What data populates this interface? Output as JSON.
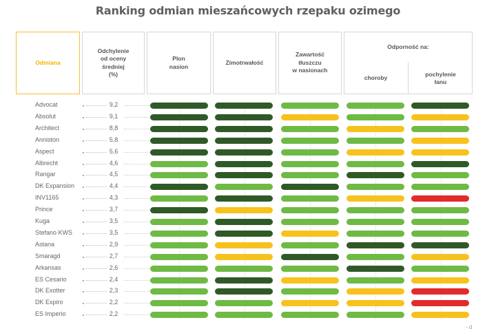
{
  "title": "Ranking odmian mieszańcowych rzepaku ozimego",
  "headers": {
    "variety": "Odmiana",
    "deviation": "Odchylenie\nod oceny\nśredniej\n(%)",
    "yield": "Plon\nnasion",
    "winter": "Zimotrwałość",
    "fat": "Zawartość\ntłuszczu\nw nasionach",
    "resistance": "Odporność na:",
    "disease": "choroby",
    "lodging": "pochylenie\nłanu"
  },
  "colors": {
    "D": "#2f5a27",
    "G": "#6fba45",
    "Y": "#f7c21e",
    "R": "#e22b2b"
  },
  "rows": [
    {
      "name": "Advocat",
      "dev": "9,2",
      "r": [
        "D",
        "D",
        "G",
        "G",
        "D"
      ]
    },
    {
      "name": "Absolut",
      "dev": "9,1",
      "r": [
        "D",
        "D",
        "Y",
        "G",
        "Y"
      ]
    },
    {
      "name": "Architect",
      "dev": "8,8",
      "r": [
        "D",
        "D",
        "G",
        "Y",
        "G"
      ]
    },
    {
      "name": "Anniston",
      "dev": "5,8",
      "r": [
        "D",
        "D",
        "G",
        "G",
        "Y"
      ]
    },
    {
      "name": "Aspect",
      "dev": "5,6",
      "r": [
        "D",
        "D",
        "G",
        "Y",
        "Y"
      ]
    },
    {
      "name": "Albrecht",
      "dev": "4,6",
      "r": [
        "G",
        "D",
        "G",
        "G",
        "D"
      ]
    },
    {
      "name": "Rangar",
      "dev": "4,5",
      "r": [
        "G",
        "D",
        "G",
        "D",
        "G"
      ]
    },
    {
      "name": "DK Expansion",
      "dev": "4,4",
      "r": [
        "D",
        "G",
        "D",
        "G",
        "G"
      ]
    },
    {
      "name": "INV1165",
      "dev": "4,3",
      "r": [
        "G",
        "D",
        "G",
        "Y",
        "R"
      ]
    },
    {
      "name": "Prince",
      "dev": "3,7",
      "r": [
        "D",
        "Y",
        "G",
        "G",
        "G"
      ]
    },
    {
      "name": "Kuga",
      "dev": "3,5",
      "r": [
        "G",
        "D",
        "G",
        "G",
        "G"
      ]
    },
    {
      "name": "Stefano KWS",
      "dev": "3,5",
      "r": [
        "G",
        "D",
        "Y",
        "G",
        "G"
      ]
    },
    {
      "name": "Astana",
      "dev": "2,9",
      "r": [
        "G",
        "Y",
        "G",
        "D",
        "D"
      ]
    },
    {
      "name": "Smaragd",
      "dev": "2,7",
      "r": [
        "G",
        "Y",
        "D",
        "G",
        "Y"
      ]
    },
    {
      "name": "Arkansas",
      "dev": "2,6",
      "r": [
        "G",
        "G",
        "G",
        "D",
        "G"
      ]
    },
    {
      "name": "ES Cesario",
      "dev": "2,4",
      "r": [
        "G",
        "D",
        "Y",
        "G",
        "Y"
      ]
    },
    {
      "name": "DK Exotter",
      "dev": "2,3",
      "r": [
        "G",
        "D",
        "G",
        "Y",
        "R"
      ]
    },
    {
      "name": "DK Expiro",
      "dev": "2,2",
      "r": [
        "G",
        "G",
        "Y",
        "Y",
        "R"
      ]
    },
    {
      "name": "ES Imperio",
      "dev": "2,2",
      "r": [
        "G",
        "G",
        "G",
        "G",
        "Y"
      ]
    }
  ]
}
